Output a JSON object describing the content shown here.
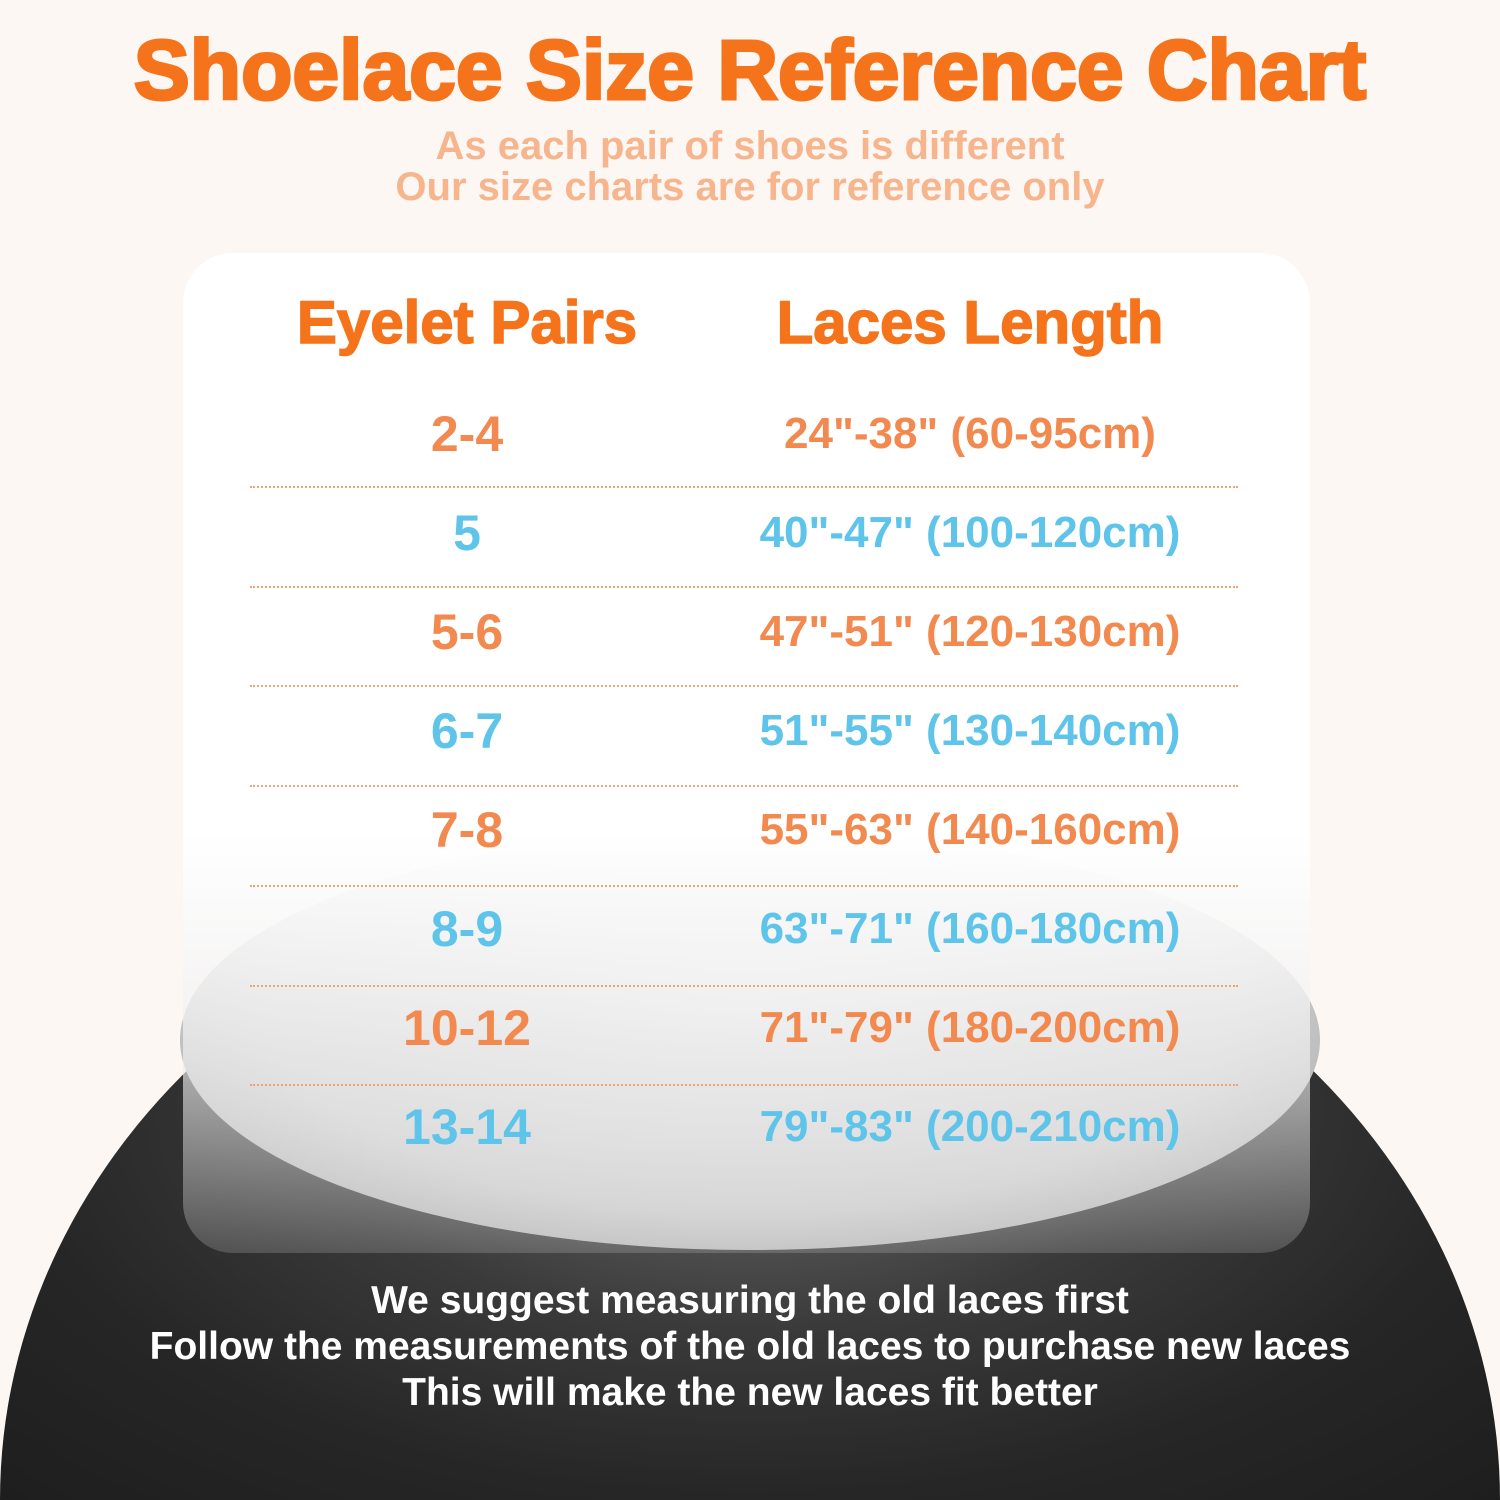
{
  "title": "Shoelace Size Reference Chart",
  "subtitle_lines": [
    "As each pair of shoes is different",
    "Our size charts are for reference only"
  ],
  "table": {
    "headers": [
      "Eyelet Pairs",
      "Laces Length"
    ],
    "rows": [
      {
        "pairs": "2-4",
        "length": "24\"-38\" (60-95cm)",
        "color": "#f28a50"
      },
      {
        "pairs": "5",
        "length": "40\"-47\" (100-120cm)",
        "color": "#5ec4ea"
      },
      {
        "pairs": "5-6",
        "length": "47\"-51\" (120-130cm)",
        "color": "#f28a50"
      },
      {
        "pairs": "6-7",
        "length": "51\"-55\" (130-140cm)",
        "color": "#5ec4ea"
      },
      {
        "pairs": "7-8",
        "length": "55\"-63\" (140-160cm)",
        "color": "#f28a50"
      },
      {
        "pairs": "8-9",
        "length": "63\"-71\" (160-180cm)",
        "color": "#5ec4ea"
      },
      {
        "pairs": "10-12",
        "length": "71\"-79\" (180-200cm)",
        "color": "#f28a50"
      },
      {
        "pairs": "13-14",
        "length": "79\"-83\" (200-210cm)",
        "color": "#5ec4ea"
      }
    ]
  },
  "footer_lines": [
    "We suggest measuring the old laces first",
    "Follow the measurements of the old laces to purchase new laces",
    "This will make the new laces fit better"
  ],
  "colors": {
    "accent": "#f5731a",
    "orange_text": "#f28a50",
    "blue_text": "#5ec4ea",
    "subtitle": "#f6b58d"
  }
}
